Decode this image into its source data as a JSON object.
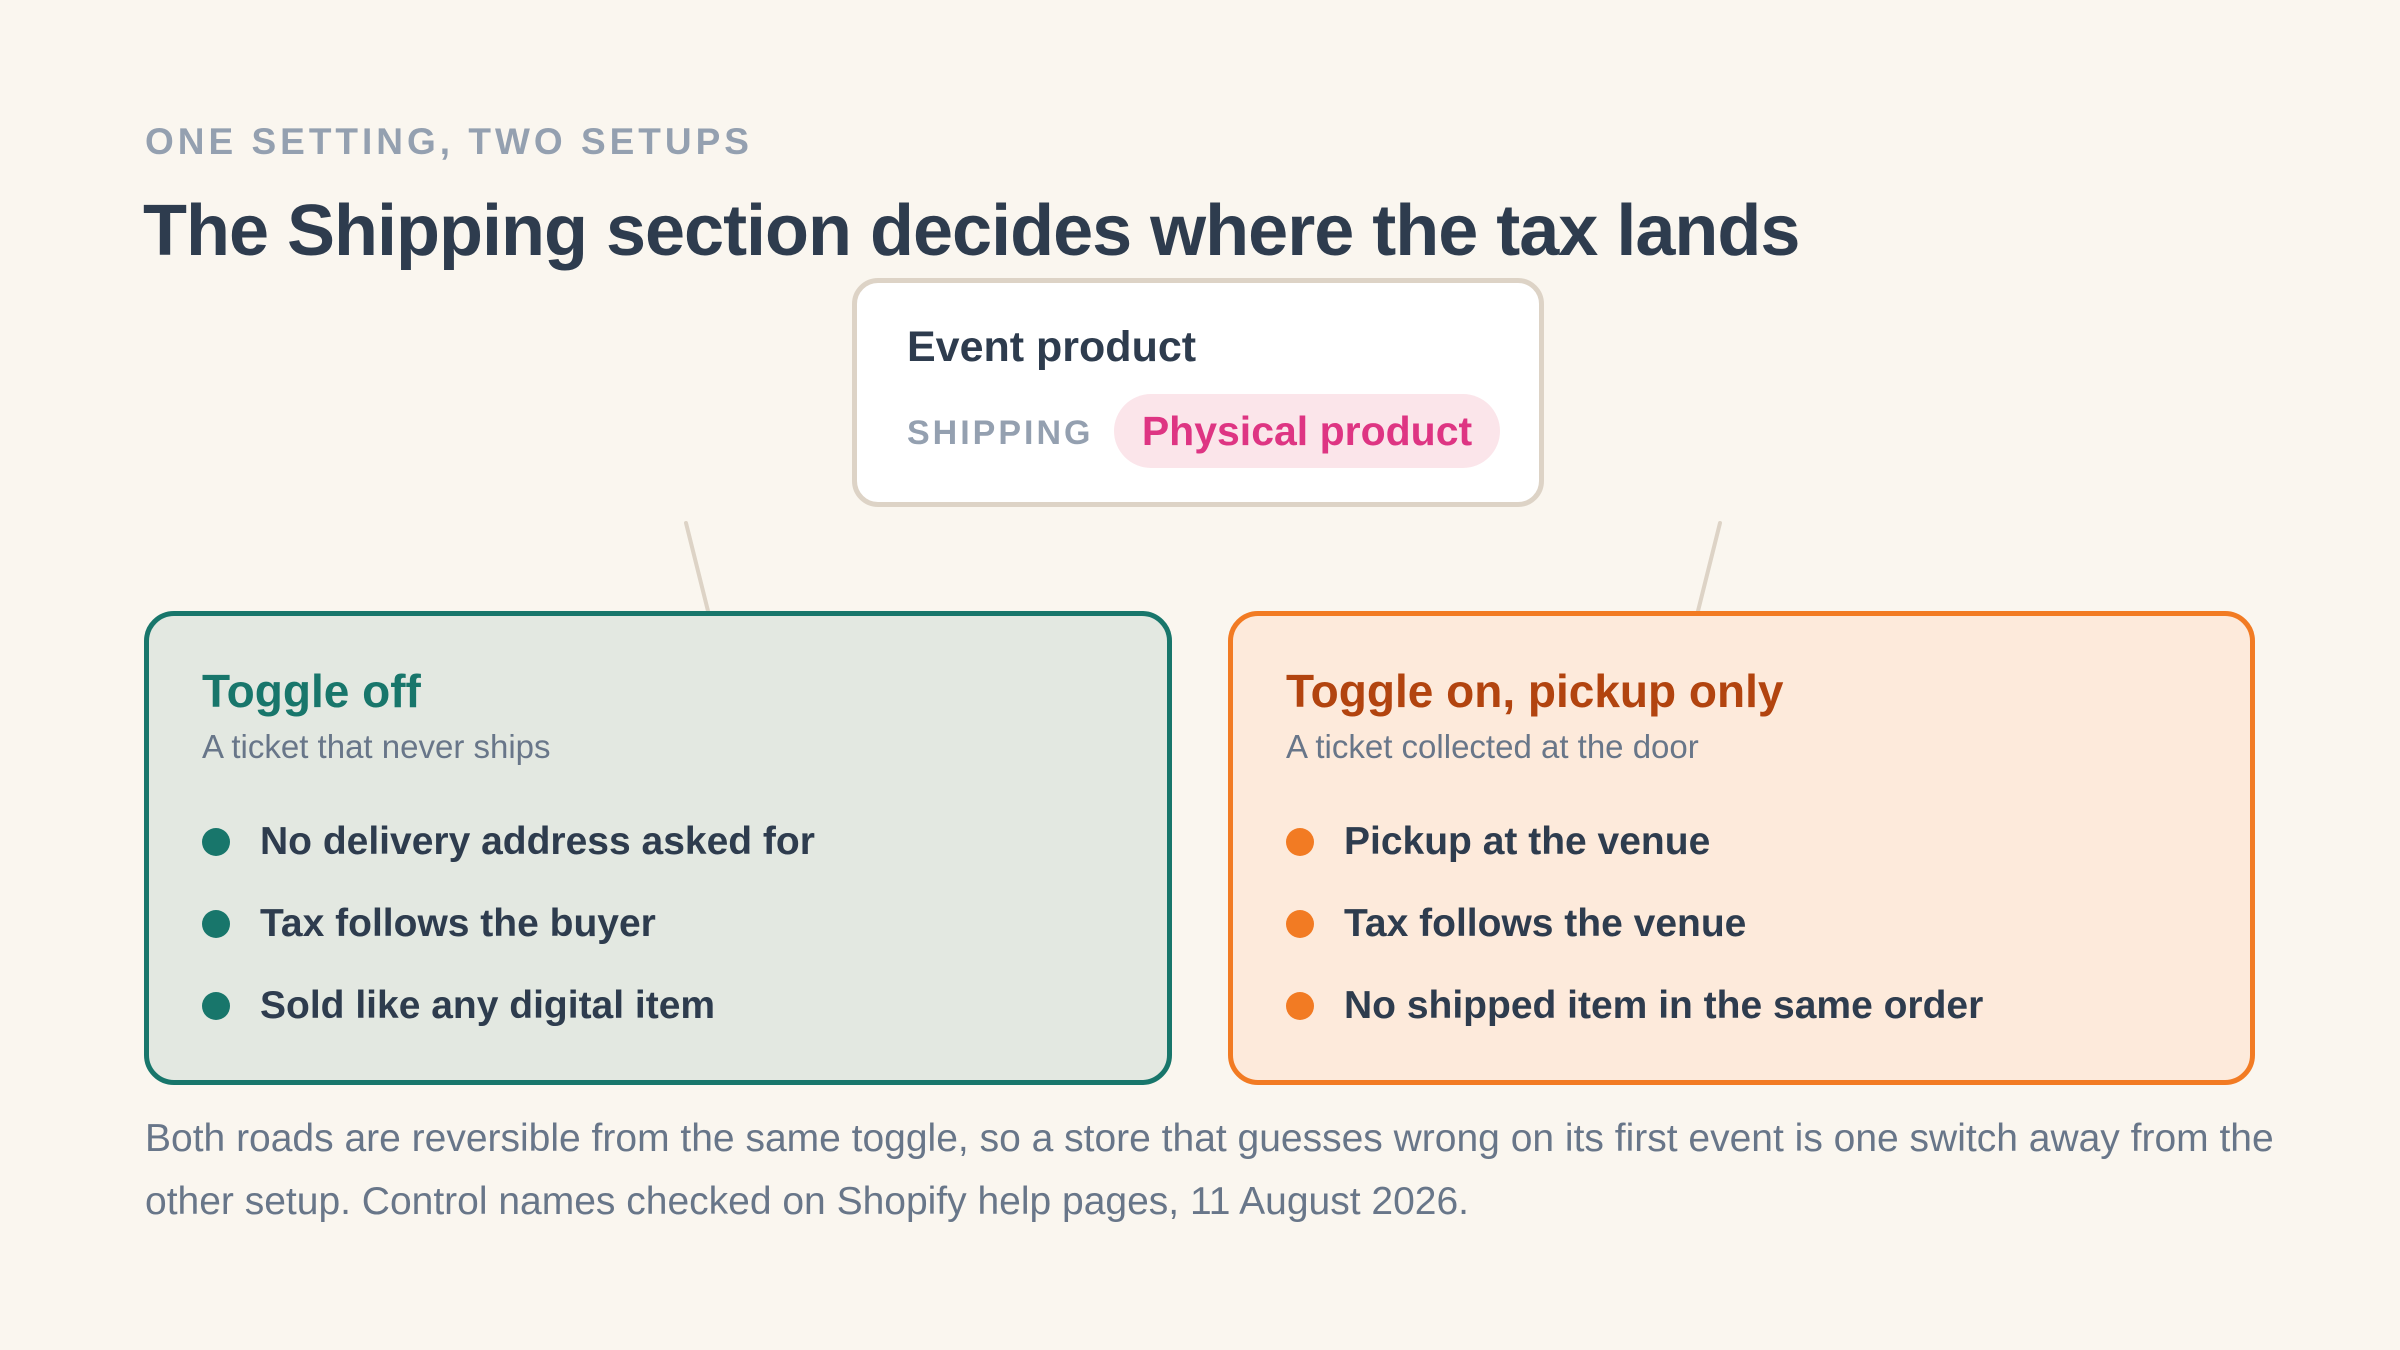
{
  "eyebrow": "ONE SETTING, TWO SETUPS",
  "title": "The Shipping section decides where the tax lands",
  "product_card": {
    "title": "Event product",
    "shipping_label": "SHIPPING",
    "shipping_value": "Physical product"
  },
  "left_panel": {
    "title": "Toggle off",
    "subtitle": "A ticket that never ships",
    "items": [
      "No delivery address asked for",
      "Tax follows the buyer",
      "Sold like any digital item"
    ]
  },
  "right_panel": {
    "title": "Toggle on, pickup only",
    "subtitle": "A ticket collected at the door",
    "items": [
      "Pickup at the venue",
      "Tax follows the venue",
      "No shipped item in the same order"
    ]
  },
  "footnote": "Both roads are reversible from the same toggle, so a store that guesses wrong on its first event is one switch away from the other setup. Control names checked on Shopify help pages, 11 August 2026.",
  "colors": {
    "background": "#faf6ef",
    "heading": "#2e3c4e",
    "muted": "#94a0b0",
    "teal": "#18766b",
    "orange": "#f27b23",
    "rust": "#b2440f",
    "pink": "#de3583"
  }
}
